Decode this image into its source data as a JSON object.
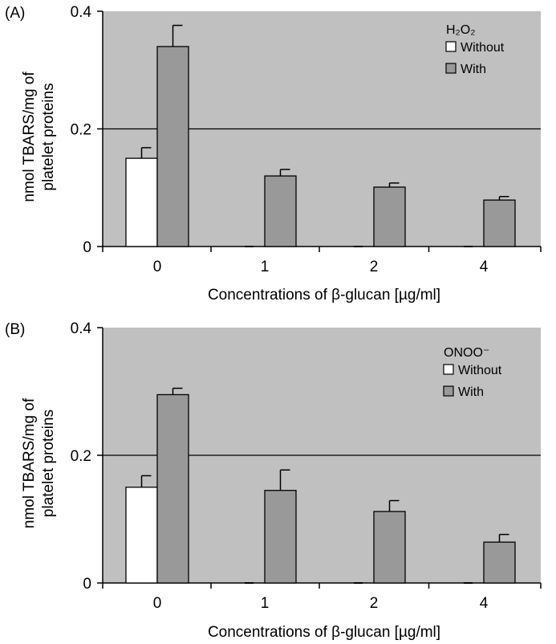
{
  "chart_data": [
    {
      "type": "bar",
      "panel_label": "(A)",
      "categories": [
        "0",
        "1",
        "2",
        "4"
      ],
      "ylabel_line1": "nmol TBARS/mg of",
      "ylabel_line2": "platelet proteins",
      "xlabel": "Concentrations of β-glucan [µg/ml]",
      "ylim": [
        0,
        0.4
      ],
      "yticks": [
        "0",
        "0.2",
        "0.4"
      ],
      "grid": "major at 0.2",
      "legend_position": "top-right",
      "legend_title": "H₂O₂",
      "series": [
        {
          "name": "Without",
          "color": "#ffffff",
          "values": [
            0.15,
            0,
            0,
            0
          ],
          "errors": [
            0.018,
            0,
            0,
            0
          ]
        },
        {
          "name": "With",
          "color": "#999999",
          "values": [
            0.34,
            0.12,
            0.101,
            0.079
          ],
          "errors": [
            0.036,
            0.011,
            0.007,
            0.006
          ]
        }
      ]
    },
    {
      "type": "bar",
      "panel_label": "(B)",
      "categories": [
        "0",
        "1",
        "2",
        "4"
      ],
      "ylabel_line1": "nmol TBARS/mg of",
      "ylabel_line2": "platelet proteins",
      "xlabel": "Concentrations of β-glucan [µg/ml]",
      "ylim": [
        0,
        0.4
      ],
      "yticks": [
        "0",
        "0.2",
        "0.4"
      ],
      "grid": "major at 0.2",
      "legend_position": "top-right",
      "legend_title": "ONOO⁻",
      "series": [
        {
          "name": "Without",
          "color": "#ffffff",
          "values": [
            0.15,
            0,
            0,
            0
          ],
          "errors": [
            0.018,
            0,
            0,
            0
          ]
        },
        {
          "name": "With",
          "color": "#999999",
          "values": [
            0.295,
            0.145,
            0.112,
            0.064
          ],
          "errors": [
            0.01,
            0.032,
            0.017,
            0.012
          ]
        }
      ]
    }
  ]
}
